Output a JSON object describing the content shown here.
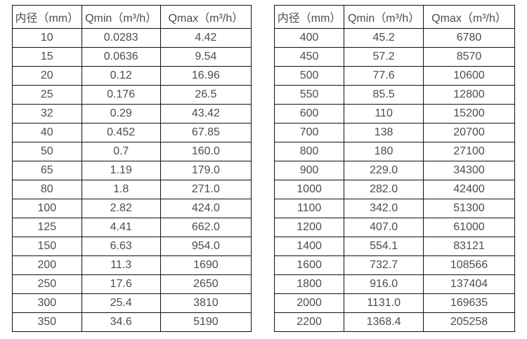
{
  "colors": {
    "background": "#ffffff",
    "border": "#111111",
    "text": "#4d4d4d"
  },
  "tables": [
    {
      "name": "flow-spec-table-small-diameters",
      "headers": [
        "内径（mm）",
        "Qmin（m³/h）",
        "Qmax（m³/h）"
      ],
      "rows": [
        [
          "10",
          "0.0283",
          "4.42"
        ],
        [
          "15",
          "0.0636",
          "9.54"
        ],
        [
          "20",
          "0.12",
          "16.96"
        ],
        [
          "25",
          "0.176",
          "26.5"
        ],
        [
          "32",
          "0.29",
          "43.42"
        ],
        [
          "40",
          "0.452",
          "67.85"
        ],
        [
          "50",
          "0.7",
          "160.0"
        ],
        [
          "65",
          "1.19",
          "179.0"
        ],
        [
          "80",
          "1.8",
          "271.0"
        ],
        [
          "100",
          "2.82",
          "424.0"
        ],
        [
          "125",
          "4.41",
          "662.0"
        ],
        [
          "150",
          "6.63",
          "954.0"
        ],
        [
          "200",
          "11.3",
          "1690"
        ],
        [
          "250",
          "17.6",
          "2650"
        ],
        [
          "300",
          "25.4",
          "3810"
        ],
        [
          "350",
          "34.6",
          "5190"
        ]
      ]
    },
    {
      "name": "flow-spec-table-large-diameters",
      "headers": [
        "内径（mm）",
        "Qmin（m³/h）",
        "Qmax（m³/h）"
      ],
      "rows": [
        [
          "400",
          "45.2",
          "6780"
        ],
        [
          "450",
          "57.2",
          "8570"
        ],
        [
          "500",
          "77.6",
          "10600"
        ],
        [
          "550",
          "85.5",
          "12800"
        ],
        [
          "600",
          "110",
          "15200"
        ],
        [
          "700",
          "138",
          "20700"
        ],
        [
          "800",
          "180",
          "27100"
        ],
        [
          "900",
          "229.0",
          "34300"
        ],
        [
          "1000",
          "282.0",
          "42400"
        ],
        [
          "1100",
          "342.0",
          "51300"
        ],
        [
          "1200",
          "407.0",
          "61000"
        ],
        [
          "1400",
          "554.1",
          "83121"
        ],
        [
          "1600",
          "732.7",
          "108566"
        ],
        [
          "1800",
          "916.0",
          "137404"
        ],
        [
          "2000",
          "1131.0",
          "169635"
        ],
        [
          "2200",
          "1368.4",
          "205258"
        ]
      ]
    }
  ]
}
